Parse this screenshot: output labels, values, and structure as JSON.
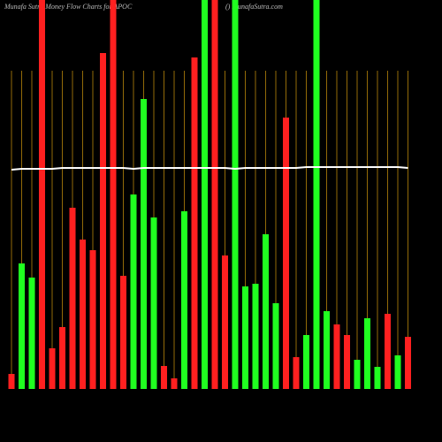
{
  "chart_data": {
    "type": "bar",
    "title": "Munafa Sutra  Money Flow  Charts for APOC",
    "subtitle": "() MunafaSutra.com",
    "categories": [
      null,
      null,
      null,
      null,
      null,
      null,
      null,
      null,
      null,
      null,
      null,
      null,
      null,
      null,
      null,
      null,
      null,
      null,
      null,
      null,
      null,
      null,
      null,
      null,
      null,
      null,
      null,
      null,
      null,
      null,
      null,
      null,
      null,
      null,
      null,
      null,
      null,
      null,
      null,
      null
    ],
    "values": [
      17,
      142,
      126,
      440,
      46,
      70,
      205,
      169,
      157,
      380,
      440,
      128,
      220,
      328,
      194,
      26,
      12,
      201,
      375,
      440,
      440,
      151,
      440,
      116,
      119,
      175,
      97,
      307,
      36,
      61,
      440,
      88,
      73,
      61,
      33,
      80,
      25,
      85,
      38,
      59
    ],
    "colors": [
      "#ff2020",
      "#20ff20",
      "#20ff20",
      "#ff2020",
      "#ff2020",
      "#ff2020",
      "#ff2020",
      "#ff2020",
      "#ff2020",
      "#ff2020",
      "#ff2020",
      "#ff2020",
      "#20ff20",
      "#20ff20",
      "#20ff20",
      "#ff2020",
      "#ff2020",
      "#20ff20",
      "#ff2020",
      "#20ff20",
      "#ff2020",
      "#ff2020",
      "#20ff20",
      "#20ff20",
      "#20ff20",
      "#20ff20",
      "#20ff20",
      "#ff2020",
      "#ff2020",
      "#20ff20",
      "#20ff20",
      "#20ff20",
      "#ff2020",
      "#ff2020",
      "#20ff20",
      "#20ff20",
      "#20ff20",
      "#ff2020",
      "#20ff20",
      "#ff2020"
    ],
    "line": {
      "color": "#ffffff",
      "values": [
        248,
        249,
        249,
        249,
        249,
        250,
        250,
        250,
        250,
        250,
        250,
        250,
        249,
        250,
        250,
        250,
        250,
        250,
        250,
        250,
        250,
        250,
        249,
        250,
        250,
        250,
        250,
        250,
        250,
        251,
        251,
        251,
        251,
        251,
        251,
        251,
        251,
        251,
        251,
        250
      ]
    },
    "ylim": [
      0,
      440
    ],
    "grid": true,
    "grid_color": "#b8860b"
  }
}
